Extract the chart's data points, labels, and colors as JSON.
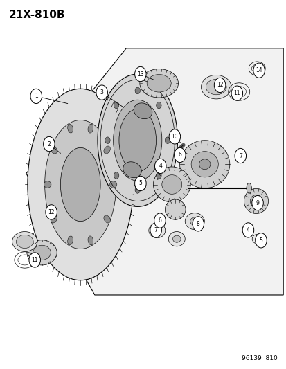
{
  "title_text": "21X-810B",
  "footer_text": "96139  810",
  "bg_color": "#ffffff",
  "line_color": "#000000",
  "title_fontsize": 11,
  "footer_fontsize": 6.5,
  "fig_width": 4.14,
  "fig_height": 5.33,
  "dpi": 100
}
